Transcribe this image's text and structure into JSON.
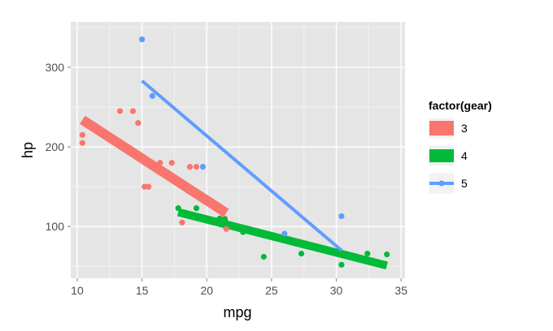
{
  "chart_data": {
    "type": "scatter",
    "xlabel": "mpg",
    "ylabel": "hp",
    "xlim": [
      9.5,
      35.3
    ],
    "ylim": [
      35,
      357
    ],
    "x_ticks": [
      10,
      15,
      20,
      25,
      30,
      35
    ],
    "x_tick_labels": [
      "10",
      "15",
      "20",
      "25",
      "30",
      "35"
    ],
    "y_ticks": [
      100,
      200,
      300
    ],
    "y_tick_labels": [
      "100",
      "200",
      "300"
    ],
    "grid": true,
    "legend": {
      "title": "factor(gear)",
      "position": "right",
      "entries": [
        "3",
        "4",
        "5"
      ]
    },
    "colors": {
      "panel": "#e5e5e5",
      "grid_major": "#ffffff",
      "grid_minor": "#f2f2f2"
    },
    "series": [
      {
        "name": "3",
        "color": "#f8766d",
        "trend_width": 12,
        "points": [
          {
            "x": 10.4,
            "y": 205
          },
          {
            "x": 10.4,
            "y": 215
          },
          {
            "x": 13.3,
            "y": 245
          },
          {
            "x": 14.3,
            "y": 245
          },
          {
            "x": 14.7,
            "y": 230
          },
          {
            "x": 15.2,
            "y": 150
          },
          {
            "x": 15.5,
            "y": 150
          },
          {
            "x": 16.4,
            "y": 180
          },
          {
            "x": 17.3,
            "y": 180
          },
          {
            "x": 18.1,
            "y": 105
          },
          {
            "x": 18.7,
            "y": 175
          },
          {
            "x": 19.2,
            "y": 175
          },
          {
            "x": 21.4,
            "y": 110
          },
          {
            "x": 21.5,
            "y": 97
          }
        ],
        "trend": [
          {
            "x": 10.4,
            "y": 234
          },
          {
            "x": 21.5,
            "y": 117
          }
        ]
      },
      {
        "name": "4",
        "color": "#00ba38",
        "trend_width": 10,
        "points": [
          {
            "x": 17.8,
            "y": 123
          },
          {
            "x": 19.2,
            "y": 123
          },
          {
            "x": 21.0,
            "y": 110
          },
          {
            "x": 21.0,
            "y": 110
          },
          {
            "x": 21.4,
            "y": 109
          },
          {
            "x": 22.8,
            "y": 93
          },
          {
            "x": 22.8,
            "y": 95
          },
          {
            "x": 24.4,
            "y": 62
          },
          {
            "x": 27.3,
            "y": 66
          },
          {
            "x": 30.4,
            "y": 52
          },
          {
            "x": 32.4,
            "y": 66
          },
          {
            "x": 33.9,
            "y": 65
          }
        ],
        "trend": [
          {
            "x": 17.8,
            "y": 118
          },
          {
            "x": 33.9,
            "y": 51
          }
        ]
      },
      {
        "name": "5",
        "color": "#619cff",
        "trend_width": 4,
        "points": [
          {
            "x": 15.0,
            "y": 335
          },
          {
            "x": 15.8,
            "y": 264
          },
          {
            "x": 19.7,
            "y": 175
          },
          {
            "x": 26.0,
            "y": 91
          },
          {
            "x": 30.4,
            "y": 113
          }
        ],
        "trend": [
          {
            "x": 15.0,
            "y": 283
          },
          {
            "x": 30.4,
            "y": 70
          }
        ]
      }
    ]
  }
}
